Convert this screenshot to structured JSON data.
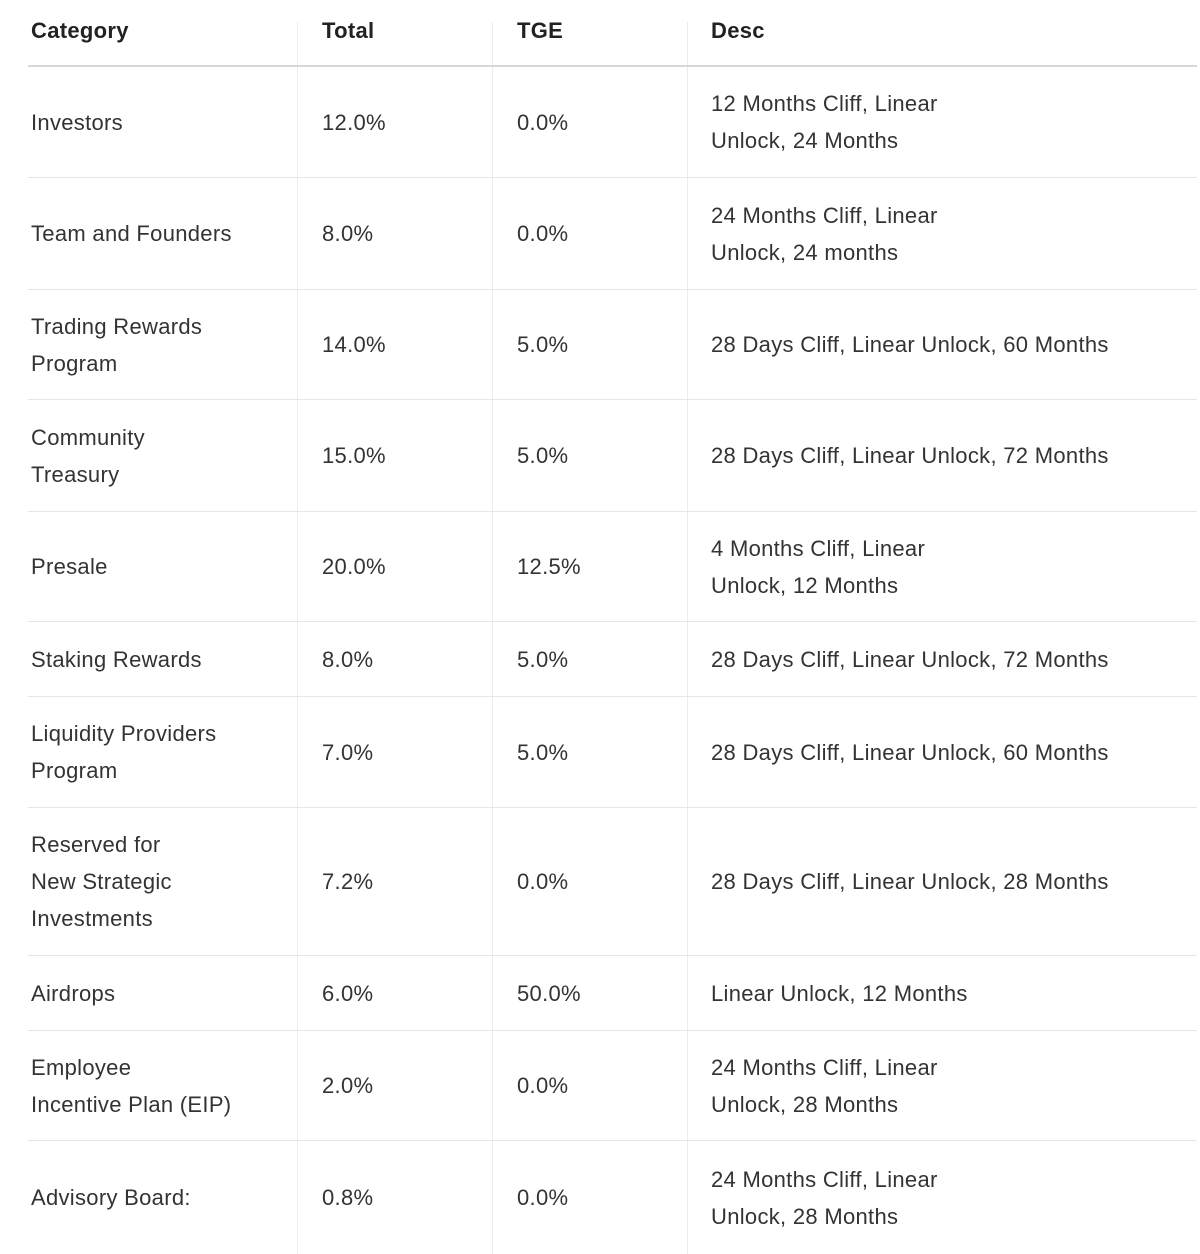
{
  "table": {
    "headers": [
      "Category",
      "Total",
      "TGE",
      "Desc"
    ],
    "rows": [
      [
        [
          "Investors"
        ],
        [
          "12.0%"
        ],
        [
          "0.0%"
        ],
        [
          "12 Months Cliff, Linear",
          "Unlock, 24 Months"
        ]
      ],
      [
        [
          "Team and Founders"
        ],
        [
          "8.0%"
        ],
        [
          "0.0%"
        ],
        [
          "24 Months Cliff, Linear",
          "Unlock, 24 months"
        ]
      ],
      [
        [
          "Trading Rewards",
          "Program"
        ],
        [
          "14.0%"
        ],
        [
          "5.0%"
        ],
        [
          "28 Days Cliff, Linear Unlock, 60 Months"
        ]
      ],
      [
        [
          "Community",
          "Treasury"
        ],
        [
          "15.0%"
        ],
        [
          "5.0%"
        ],
        [
          "28 Days Cliff, Linear Unlock, 72 Months"
        ]
      ],
      [
        [
          "Presale"
        ],
        [
          "20.0%"
        ],
        [
          "12.5%"
        ],
        [
          "4 Months Cliff, Linear",
          "Unlock, 12 Months"
        ]
      ],
      [
        [
          "Staking Rewards"
        ],
        [
          "8.0%"
        ],
        [
          "5.0%"
        ],
        [
          "28 Days Cliff, Linear Unlock, 72 Months"
        ]
      ],
      [
        [
          "Liquidity Providers",
          "Program"
        ],
        [
          "7.0%"
        ],
        [
          "5.0%"
        ],
        [
          "28 Days Cliff, Linear Unlock, 60 Months"
        ]
      ],
      [
        [
          "Reserved for",
          "New Strategic",
          "Investments"
        ],
        [
          "7.2%"
        ],
        [
          "0.0%"
        ],
        [
          "28 Days Cliff, Linear Unlock, 28 Months"
        ]
      ],
      [
        [
          "Airdrops"
        ],
        [
          "6.0%"
        ],
        [
          "50.0%"
        ],
        [
          "Linear Unlock, 12 Months"
        ]
      ],
      [
        [
          "Employee",
          "Incentive Plan (EIP)"
        ],
        [
          "2.0%"
        ],
        [
          "0.0%"
        ],
        [
          "24 Months Cliff, Linear",
          "Unlock, 28 Months"
        ]
      ],
      [
        [
          "Advisory Board:"
        ],
        [
          "0.8%"
        ],
        [
          "0.0%"
        ],
        [
          "24 Months Cliff, Linear",
          "Unlock, 28 Months"
        ]
      ]
    ]
  }
}
